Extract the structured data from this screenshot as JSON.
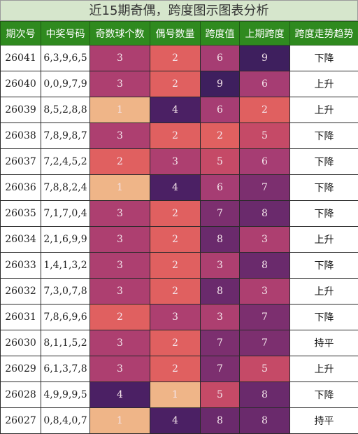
{
  "title": "近15期奇偶，跨度图示图表分析",
  "headers": [
    "期次号",
    "中奖号码",
    "奇数球个数",
    "偶号数量",
    "跨度值",
    "上期跨度",
    "跨度走势趋势"
  ],
  "colors": {
    "1": "#efb588",
    "2": "#e06060",
    "3": "#ad3f70",
    "4": "#4b2064",
    "5": "#c54a67",
    "6": "#a63d73",
    "7": "#7c2f6f",
    "8": "#6a2a6c",
    "9": "#3e1f5e"
  },
  "rows": [
    {
      "period": "26041",
      "numbers": "6,3,9,6,5",
      "odd": "3",
      "even": "2",
      "span": "6",
      "prev_span": "9",
      "trend": "下降"
    },
    {
      "period": "26040",
      "numbers": "0,0,9,7,9",
      "odd": "3",
      "even": "2",
      "span": "9",
      "prev_span": "6",
      "trend": "上升"
    },
    {
      "period": "26039",
      "numbers": "8,5,2,8,8",
      "odd": "1",
      "even": "4",
      "span": "6",
      "prev_span": "2",
      "trend": "上升"
    },
    {
      "period": "26038",
      "numbers": "7,8,9,8,7",
      "odd": "3",
      "even": "2",
      "span": "2",
      "prev_span": "5",
      "trend": "下降"
    },
    {
      "period": "26037",
      "numbers": "7,2,4,5,2",
      "odd": "2",
      "even": "3",
      "span": "5",
      "prev_span": "6",
      "trend": "下降"
    },
    {
      "period": "26036",
      "numbers": "7,8,8,2,4",
      "odd": "1",
      "even": "4",
      "span": "6",
      "prev_span": "7",
      "trend": "下降"
    },
    {
      "period": "26035",
      "numbers": "7,1,7,0,4",
      "odd": "3",
      "even": "2",
      "span": "7",
      "prev_span": "8",
      "trend": "下降"
    },
    {
      "period": "26034",
      "numbers": "2,1,6,9,9",
      "odd": "3",
      "even": "2",
      "span": "8",
      "prev_span": "3",
      "trend": "上升"
    },
    {
      "period": "26033",
      "numbers": "1,4,1,3,2",
      "odd": "3",
      "even": "2",
      "span": "3",
      "prev_span": "8",
      "trend": "下降"
    },
    {
      "period": "26032",
      "numbers": "7,3,0,7,8",
      "odd": "3",
      "even": "2",
      "span": "8",
      "prev_span": "3",
      "trend": "上升"
    },
    {
      "period": "26031",
      "numbers": "7,8,6,9,6",
      "odd": "2",
      "even": "3",
      "span": "3",
      "prev_span": "7",
      "trend": "下降"
    },
    {
      "period": "26030",
      "numbers": "8,1,1,5,2",
      "odd": "3",
      "even": "2",
      "span": "7",
      "prev_span": "7",
      "trend": "持平"
    },
    {
      "period": "26029",
      "numbers": "6,1,3,7,8",
      "odd": "3",
      "even": "2",
      "span": "7",
      "prev_span": "5",
      "trend": "上升"
    },
    {
      "period": "26028",
      "numbers": "4,9,9,9,5",
      "odd": "4",
      "even": "1",
      "span": "5",
      "prev_span": "8",
      "trend": "下降"
    },
    {
      "period": "26027",
      "numbers": "0,8,4,0,7",
      "odd": "1",
      "even": "4",
      "span": "8",
      "prev_span": "8",
      "trend": "持平"
    }
  ]
}
